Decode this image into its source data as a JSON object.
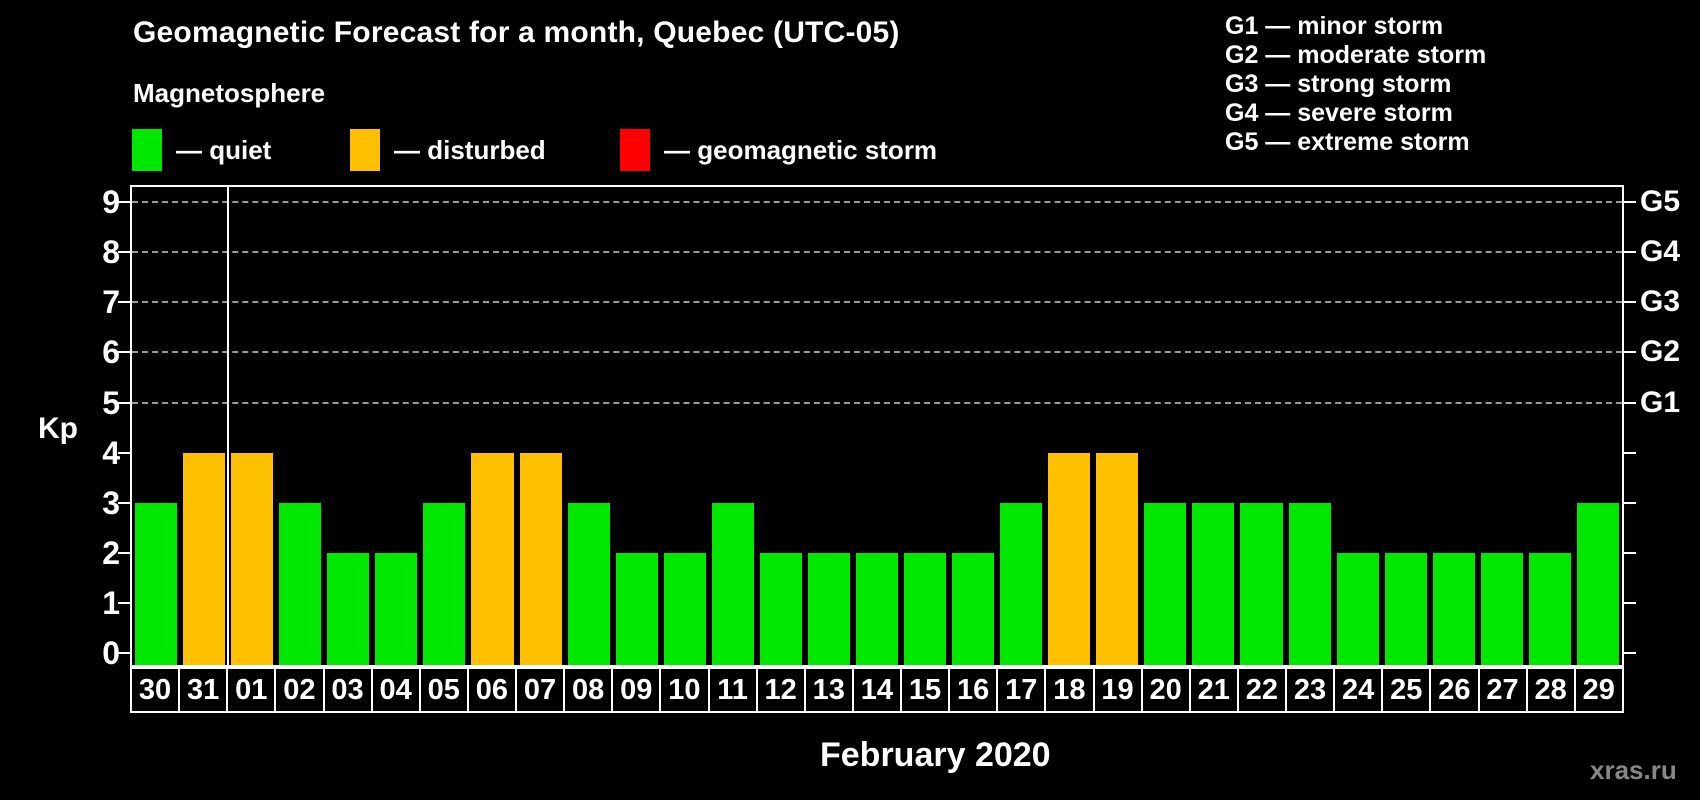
{
  "header": {
    "title": "Geomagnetic Forecast for a month, Quebec (UTC-05)",
    "subtitle": "Magnetosphere",
    "legend": [
      {
        "name": "quiet",
        "label": "— quiet",
        "color": "#00E800"
      },
      {
        "name": "disturbed",
        "label": "— disturbed",
        "color": "#FFC000"
      },
      {
        "name": "storm",
        "label": "— geomagnetic storm",
        "color": "#FF0000"
      }
    ],
    "g_scale_legend": [
      "G1 — minor storm",
      "G2 — moderate storm",
      "G3 — strong storm",
      "G4 — severe storm",
      "G5 — extreme storm"
    ]
  },
  "chart_data": {
    "type": "bar",
    "title": "Geomagnetic Forecast for a month, Quebec (UTC-05)",
    "ylabel": "Kp",
    "xlabel": "February 2020",
    "ylim": [
      0,
      9.35
    ],
    "yticks": [
      0,
      1,
      2,
      3,
      4,
      5,
      6,
      7,
      8,
      9
    ],
    "gridlines_at": [
      5,
      6,
      7,
      8,
      9
    ],
    "grid": "dashed",
    "right_axis_labels": [
      {
        "kp": 5,
        "label": "G1"
      },
      {
        "kp": 6,
        "label": "G2"
      },
      {
        "kp": 7,
        "label": "G3"
      },
      {
        "kp": 8,
        "label": "G4"
      },
      {
        "kp": 9,
        "label": "G5"
      }
    ],
    "categories": [
      "30",
      "31",
      "01",
      "02",
      "03",
      "04",
      "05",
      "06",
      "07",
      "08",
      "09",
      "10",
      "11",
      "12",
      "13",
      "14",
      "15",
      "16",
      "17",
      "18",
      "19",
      "20",
      "21",
      "22",
      "23",
      "24",
      "25",
      "26",
      "27",
      "28",
      "29"
    ],
    "values": [
      3,
      4,
      4,
      3,
      2,
      2,
      3,
      4,
      4,
      3,
      2,
      2,
      3,
      2,
      2,
      2,
      2,
      2,
      3,
      4,
      4,
      3,
      3,
      3,
      3,
      2,
      2,
      2,
      2,
      2,
      3
    ],
    "states": [
      "quiet",
      "disturbed",
      "disturbed",
      "quiet",
      "quiet",
      "quiet",
      "quiet",
      "disturbed",
      "disturbed",
      "quiet",
      "quiet",
      "quiet",
      "quiet",
      "quiet",
      "quiet",
      "quiet",
      "quiet",
      "quiet",
      "quiet",
      "disturbed",
      "disturbed",
      "quiet",
      "quiet",
      "quiet",
      "quiet",
      "quiet",
      "quiet",
      "quiet",
      "quiet",
      "quiet",
      "quiet"
    ],
    "state_colors": {
      "quiet": "#00E800",
      "disturbed": "#FFC000",
      "storm": "#FF0000"
    },
    "month_separator_after_index": 2,
    "legend_position": "top-left"
  },
  "footer": {
    "xaxis_title": "February 2020",
    "watermark": "xras.ru"
  }
}
